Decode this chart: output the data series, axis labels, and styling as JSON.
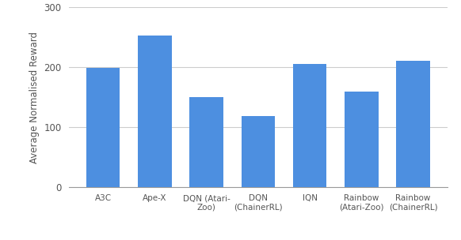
{
  "categories": [
    "A3C",
    "Ape-X",
    "DQN (Atari-\nZoo)",
    "DQN\n(ChainerRL)",
    "IQN",
    "Rainbow\n(Atari-Zoo)",
    "Rainbow\n(ChainerRL)"
  ],
  "values": [
    199,
    253,
    150,
    118,
    205,
    160,
    211
  ],
  "bar_color": "#4d8fe0",
  "ylabel": "Average Normalised Reward",
  "ylim": [
    0,
    300
  ],
  "yticks": [
    0,
    100,
    200,
    300
  ],
  "background_color": "#ffffff",
  "grid_color": "#cccccc",
  "bar_width": 0.65
}
